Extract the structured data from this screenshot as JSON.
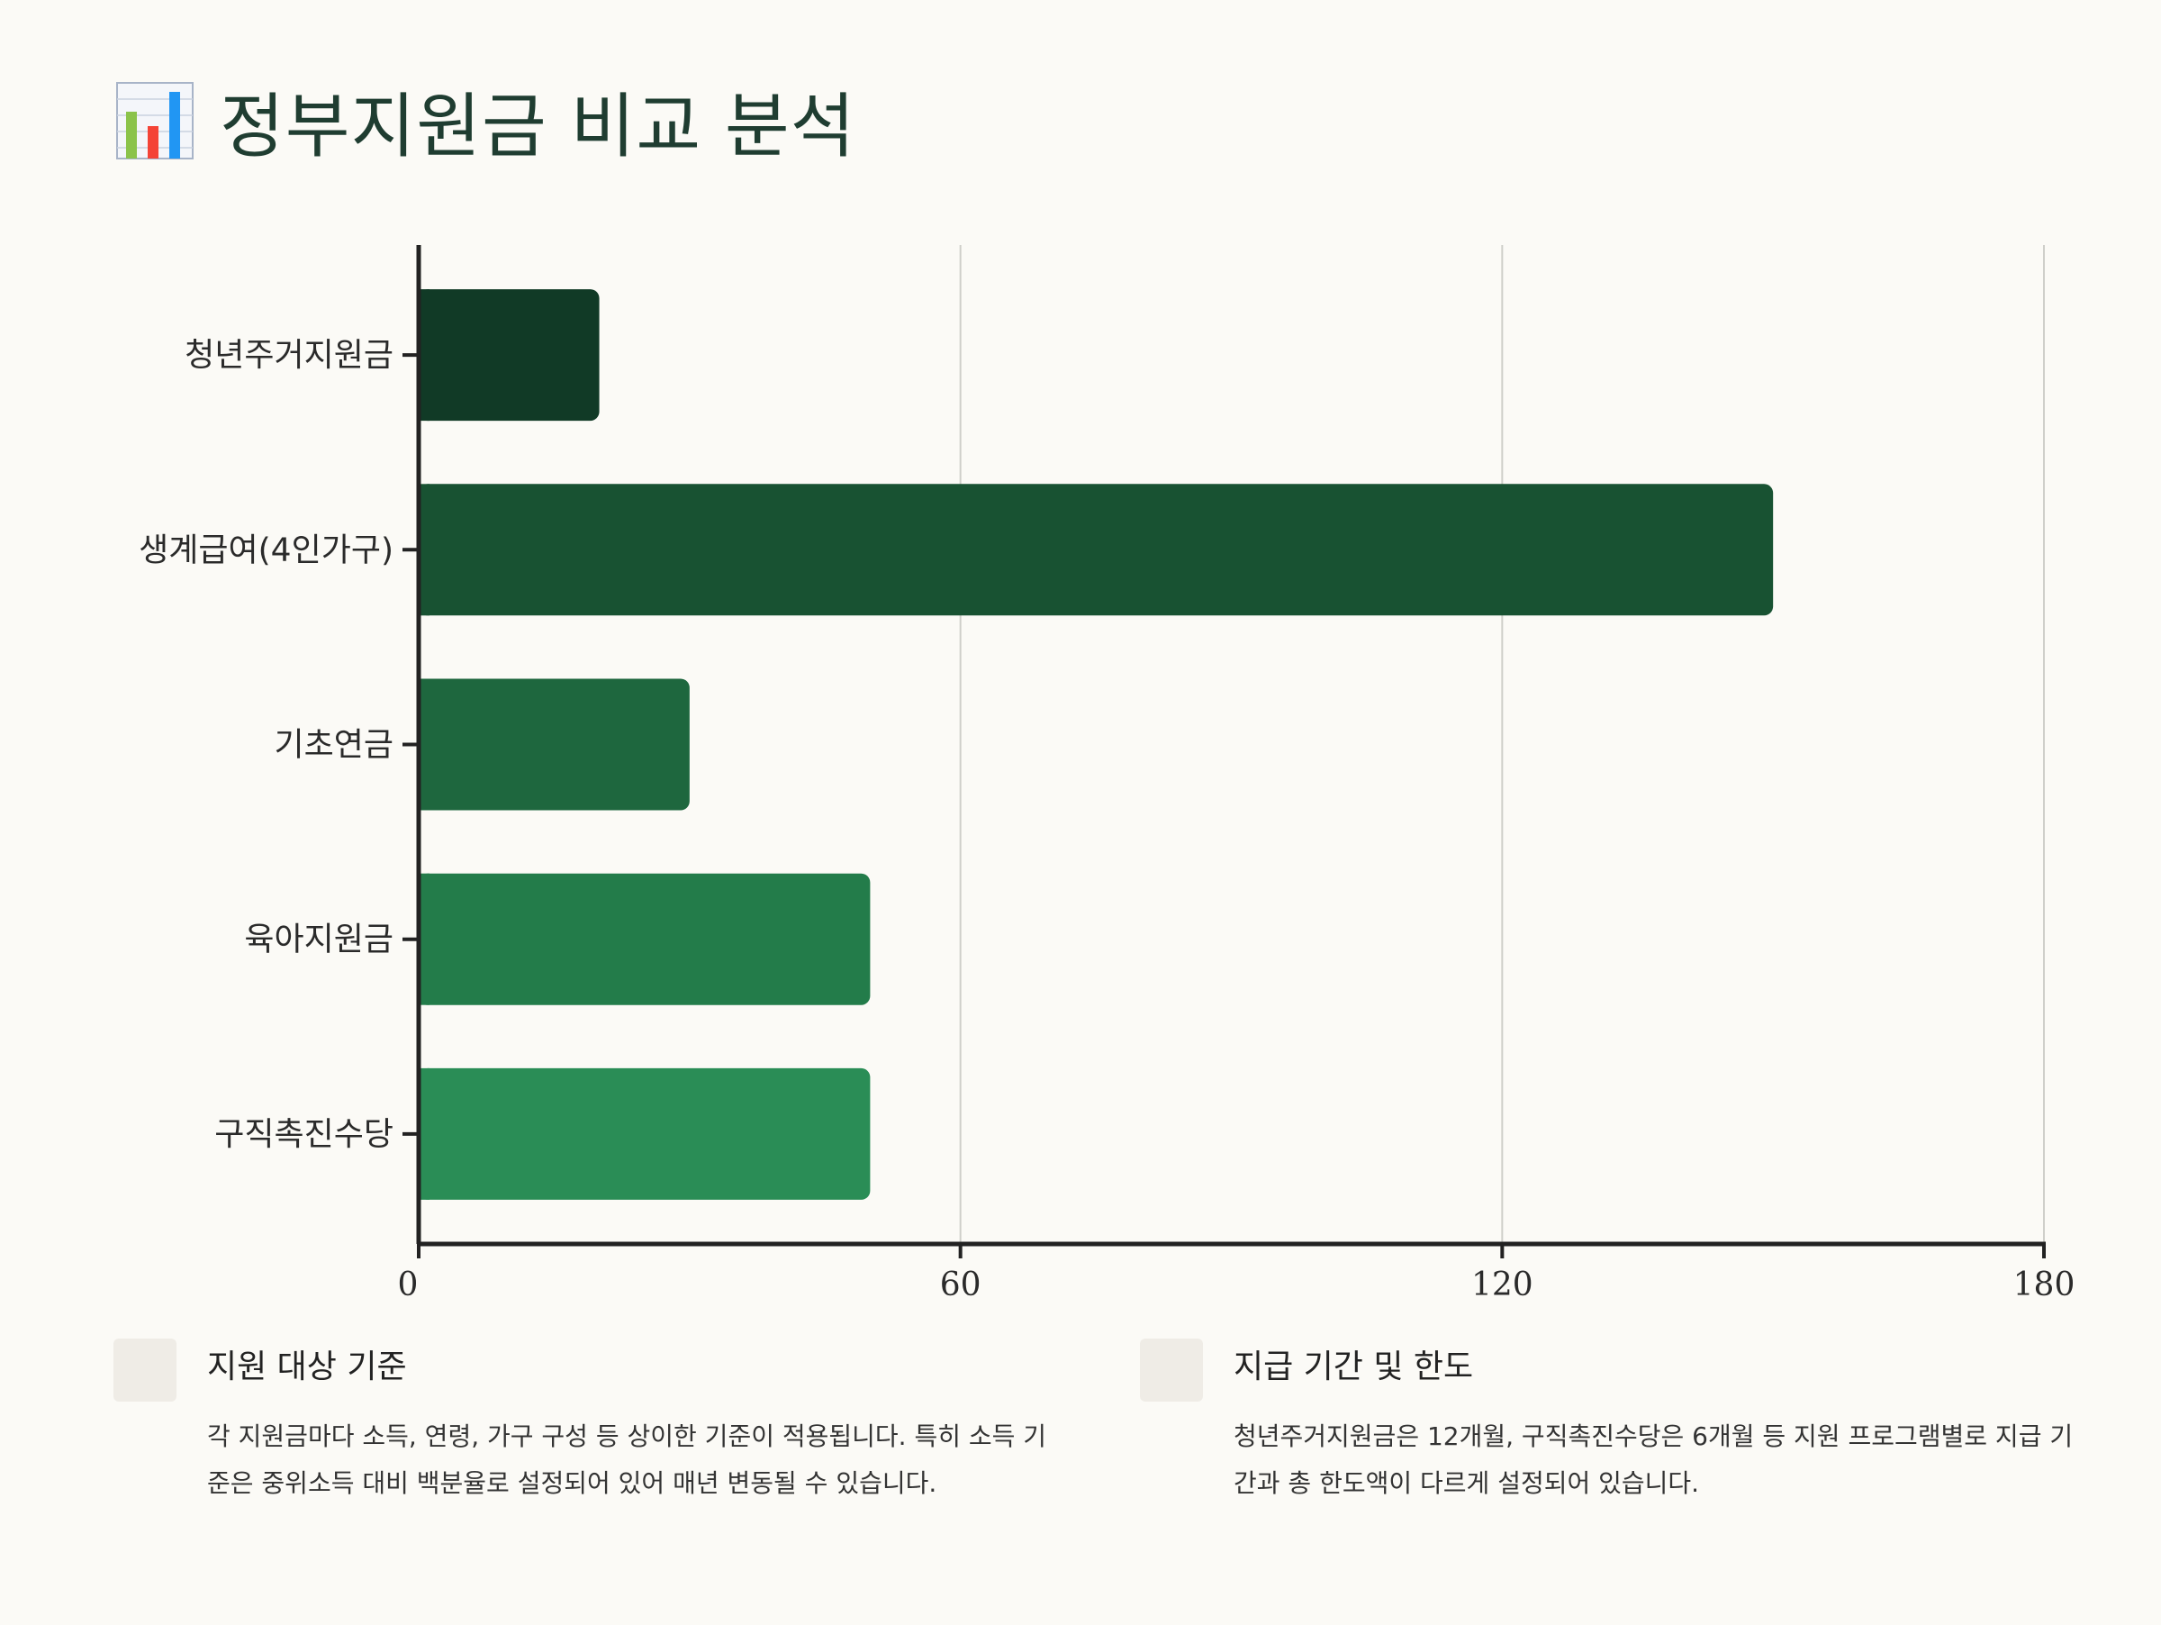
{
  "page": {
    "title": "정부지원금 비교 분석",
    "title_icon": "bar-chart-icon"
  },
  "chart_data": {
    "type": "bar",
    "orientation": "horizontal",
    "categories": [
      "청년주거지원금",
      "생계급여(4인가구)",
      "기초연금",
      "육아지원금",
      "구직촉진수당"
    ],
    "values": [
      20,
      150,
      30,
      50,
      50
    ],
    "xlim": [
      0,
      180
    ],
    "xticks": [
      0,
      60,
      120,
      180
    ],
    "grid": true,
    "colors": [
      "#113a26",
      "#185232",
      "#1e673e",
      "#237c4a",
      "#2a8d56"
    ],
    "title": "",
    "xlabel": "",
    "ylabel": ""
  },
  "cards": [
    {
      "icon": "card-icon",
      "title": "지원 대상 기준",
      "text": "각 지원금마다 소득, 연령, 가구 구성 등 상이한 기준이 적용됩니다. 특히 소득 기준은 중위소득 대비 백분율로 설정되어 있어 매년 변동될 수 있습니다."
    },
    {
      "icon": "card-icon",
      "title": "지급 기간 및 한도",
      "text": "청년주거지원금은 12개월, 구직촉진수당은 6개월 등 지원 프로그램별로 지급 기간과 총 한도액이 다르게 설정되어 있습니다."
    }
  ]
}
